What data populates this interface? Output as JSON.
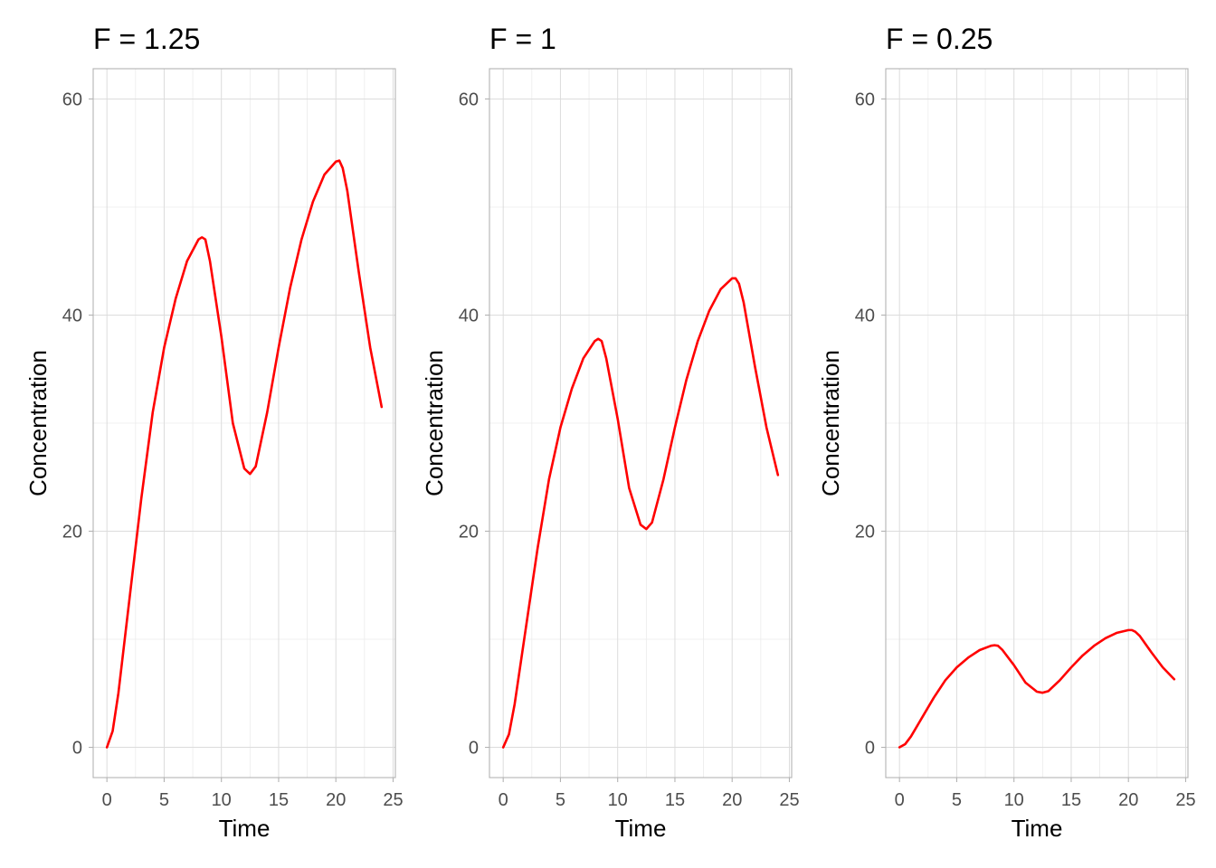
{
  "chart_data": [
    {
      "type": "line",
      "title": "F = 1.25",
      "xlabel": "Time",
      "ylabel": "Concentration",
      "xlim": [
        -1.2,
        25.2
      ],
      "ylim": [
        -2.8,
        62.8
      ],
      "xticks": [
        0,
        5,
        10,
        15,
        20,
        25
      ],
      "xtick_labels": [
        "0",
        "5",
        "10",
        "15",
        "20",
        "25"
      ],
      "yticks": [
        0,
        20,
        40,
        60
      ],
      "ytick_labels": [
        "0",
        "20",
        "40",
        "60"
      ],
      "grid": true,
      "line_color": "#ff0000",
      "x": [
        0,
        0.5,
        1,
        2,
        3,
        4,
        5,
        6,
        7,
        8,
        8.3,
        8.6,
        9,
        10,
        11,
        12,
        12.5,
        13,
        14,
        15,
        16,
        17,
        18,
        19,
        20,
        20.3,
        20.6,
        21,
        22,
        23,
        24
      ],
      "y": [
        0,
        1.5,
        5,
        14,
        23,
        31,
        37,
        41.5,
        45,
        47,
        47.2,
        47,
        45,
        38,
        30,
        25.8,
        25.3,
        26,
        31,
        37,
        42.5,
        47,
        50.5,
        53,
        54.2,
        54.3,
        53.6,
        51.5,
        44,
        37,
        31.5
      ]
    },
    {
      "type": "line",
      "title": "F = 1",
      "xlabel": "Time",
      "ylabel": "Concentration",
      "xlim": [
        -1.2,
        25.2
      ],
      "ylim": [
        -2.8,
        62.8
      ],
      "xticks": [
        0,
        5,
        10,
        15,
        20,
        25
      ],
      "xtick_labels": [
        "0",
        "5",
        "10",
        "15",
        "20",
        "25"
      ],
      "yticks": [
        0,
        20,
        40,
        60
      ],
      "ytick_labels": [
        "0",
        "20",
        "40",
        "60"
      ],
      "grid": true,
      "line_color": "#ff0000",
      "x": [
        0,
        0.5,
        1,
        2,
        3,
        4,
        5,
        6,
        7,
        8,
        8.3,
        8.6,
        9,
        10,
        11,
        12,
        12.5,
        13,
        14,
        15,
        16,
        17,
        18,
        19,
        20,
        20.3,
        20.6,
        21,
        22,
        23,
        24
      ],
      "y": [
        0,
        1.2,
        4,
        11.2,
        18.4,
        24.8,
        29.6,
        33.2,
        36,
        37.6,
        37.8,
        37.6,
        36,
        30.4,
        24,
        20.6,
        20.2,
        20.8,
        24.8,
        29.6,
        34,
        37.6,
        40.4,
        42.4,
        43.4,
        43.4,
        42.9,
        41.2,
        35.2,
        29.6,
        25.2
      ]
    },
    {
      "type": "line",
      "title": "F = 0.25",
      "xlabel": "Time",
      "ylabel": "Concentration",
      "xlim": [
        -1.2,
        25.2
      ],
      "ylim": [
        -2.8,
        62.8
      ],
      "xticks": [
        0,
        5,
        10,
        15,
        20,
        25
      ],
      "xtick_labels": [
        "0",
        "5",
        "10",
        "15",
        "20",
        "25"
      ],
      "yticks": [
        0,
        20,
        40,
        60
      ],
      "ytick_labels": [
        "0",
        "20",
        "40",
        "60"
      ],
      "grid": true,
      "line_color": "#ff0000",
      "x": [
        0,
        0.5,
        1,
        2,
        3,
        4,
        5,
        6,
        7,
        8,
        8.3,
        8.6,
        9,
        10,
        11,
        12,
        12.5,
        13,
        14,
        15,
        16,
        17,
        18,
        19,
        20,
        20.3,
        20.6,
        21,
        22,
        23,
        24
      ],
      "y": [
        0,
        0.3,
        1,
        2.8,
        4.6,
        6.2,
        7.4,
        8.3,
        9,
        9.4,
        9.45,
        9.4,
        9,
        7.6,
        6,
        5.15,
        5.05,
        5.2,
        6.2,
        7.4,
        8.5,
        9.4,
        10.1,
        10.6,
        10.85,
        10.85,
        10.7,
        10.3,
        8.8,
        7.4,
        6.3
      ]
    }
  ]
}
